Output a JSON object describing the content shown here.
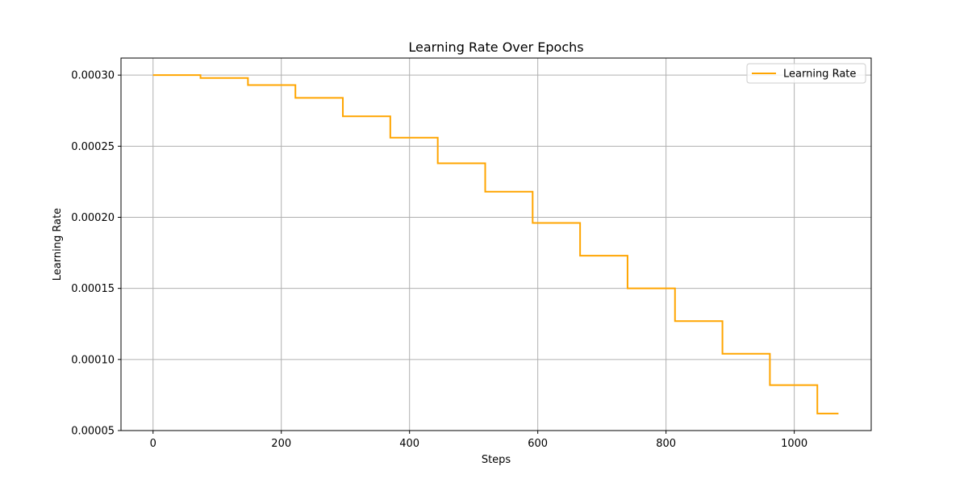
{
  "chart_data": {
    "type": "line",
    "title": "Learning Rate Over Epochs",
    "xlabel": "Steps",
    "ylabel": "Learning Rate",
    "xlim": [
      -50,
      1120
    ],
    "ylim": [
      5e-05,
      0.000312
    ],
    "xticks": [
      0,
      200,
      400,
      600,
      800,
      1000
    ],
    "xtick_labels": [
      "0",
      "200",
      "400",
      "600",
      "800",
      "1000"
    ],
    "yticks": [
      5e-05,
      0.0001,
      0.00015,
      0.0002,
      0.00025,
      0.0003
    ],
    "ytick_labels": [
      "0.00005",
      "0.00010",
      "0.00015",
      "0.00020",
      "0.00025",
      "0.00030"
    ],
    "grid": true,
    "legend_position": "top-right",
    "series": [
      {
        "name": "Learning Rate",
        "color": "#ffa500",
        "step_boundaries": [
          0,
          74,
          148,
          222,
          296,
          370,
          444,
          518,
          592,
          666,
          740,
          814,
          888,
          962,
          1036,
          1069
        ],
        "values": [
          0.0003,
          0.000298,
          0.000293,
          0.000284,
          0.000271,
          0.000256,
          0.000238,
          0.000218,
          0.000196,
          0.000173,
          0.00015,
          0.000127,
          0.000104,
          8.2e-05,
          6.2e-05
        ]
      }
    ]
  }
}
